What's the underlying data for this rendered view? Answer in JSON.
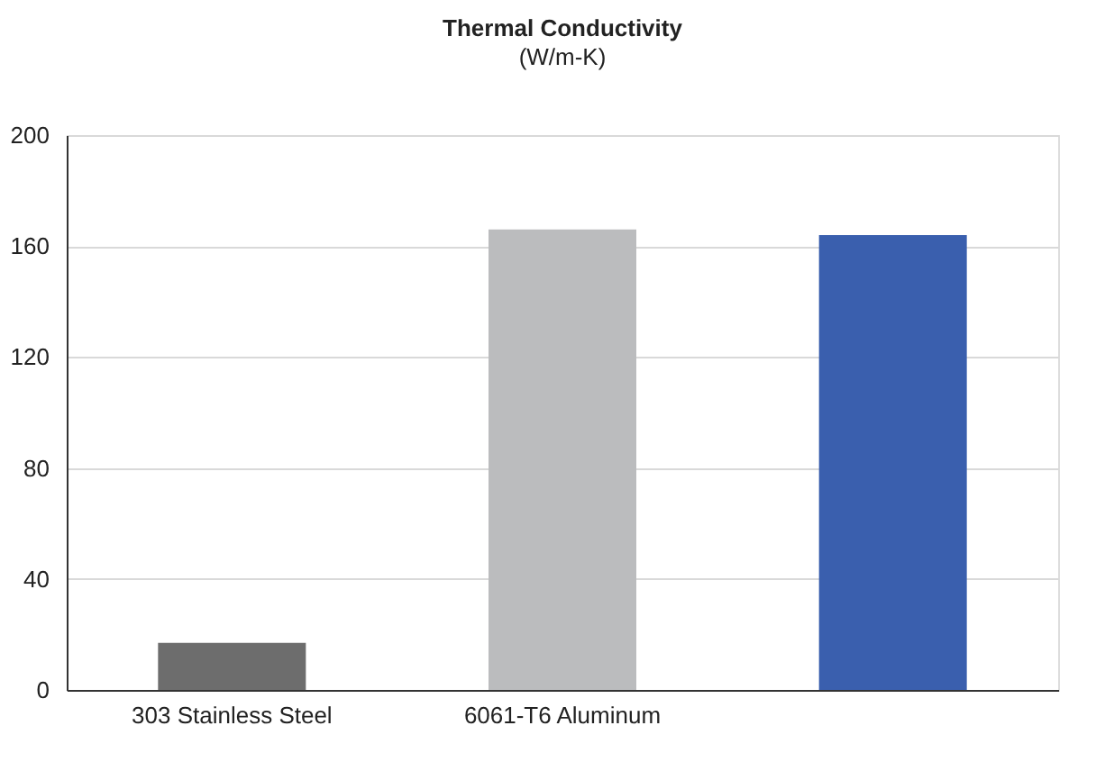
{
  "chart_data": {
    "type": "bar",
    "title": "Thermal Conductivity",
    "subtitle": "(W/m-K)",
    "categories": [
      "303 Stainless Steel",
      "6061-T6 Aluminum",
      null
    ],
    "values": [
      17,
      166,
      164
    ],
    "colors": [
      "#6d6d6d",
      "#bbbcbe",
      "#3a5fae"
    ],
    "ylim": [
      0,
      200
    ],
    "yticks": [
      0,
      40,
      80,
      120,
      160,
      200
    ],
    "grid": "y"
  }
}
